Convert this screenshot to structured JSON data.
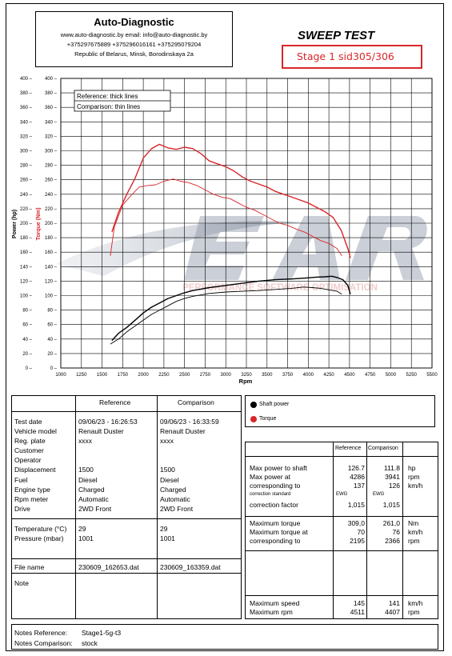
{
  "header": {
    "brand": "Auto-Diagnostic",
    "line1": "www.auto-diagnostic.by    email: info@auto-diagnostic.by",
    "line2": "+375297675889  +375296016161  +375295079204",
    "line3": "Republic of Belarus, Minsk, Borodinskaya 2a"
  },
  "title": "SWEEP TEST",
  "stage_label": "Stage 1 sid305/306",
  "legend_box": {
    "reference": "Reference: thick lines",
    "comparison": "Comparison: thin lines"
  },
  "legend_side": {
    "shaft": "Shaft power",
    "torque": "Torque"
  },
  "watermark": "PERFORMANCE SOFTWARE OPTIMISATION",
  "colors": {
    "torque": "#d9262a",
    "power": "#000000",
    "stage_border": "#d9262a"
  },
  "chart_data": {
    "type": "line",
    "xlabel": "Rpm",
    "ylabel_left": "Power (hp)",
    "ylabel_right": "Torque (Nm)",
    "xlim": [
      1000,
      5500
    ],
    "ylim": [
      0,
      400
    ],
    "x_ticks": [
      1000,
      1250,
      1500,
      1750,
      2000,
      2250,
      2500,
      2750,
      3000,
      3250,
      3500,
      3750,
      4000,
      4250,
      4500,
      4750,
      5000,
      5250,
      5500
    ],
    "y_ticks": [
      0,
      20,
      40,
      60,
      80,
      100,
      120,
      140,
      160,
      180,
      200,
      220,
      240,
      260,
      280,
      300,
      320,
      340,
      360,
      380,
      400
    ],
    "grid": true,
    "series": [
      {
        "name": "Reference torque",
        "kind": "torque",
        "weight": "thick",
        "x": [
          1620,
          1700,
          1800,
          1900,
          2000,
          2100,
          2195,
          2300,
          2400,
          2500,
          2600,
          2700,
          2800,
          2900,
          3000,
          3100,
          3200,
          3300,
          3400,
          3500,
          3600,
          3700,
          3800,
          3900,
          4000,
          4100,
          4200,
          4300,
          4400,
          4480,
          4511
        ],
        "y": [
          188,
          215,
          240,
          262,
          290,
          303,
          309,
          304,
          302,
          305,
          303,
          296,
          286,
          282,
          278,
          272,
          264,
          258,
          254,
          250,
          244,
          240,
          236,
          232,
          228,
          222,
          216,
          208,
          190,
          165,
          152
        ]
      },
      {
        "name": "Comparison torque",
        "kind": "torque",
        "weight": "thin",
        "x": [
          1600,
          1650,
          1750,
          1850,
          1950,
          2050,
          2150,
          2250,
          2366,
          2450,
          2550,
          2650,
          2750,
          2850,
          2950,
          3050,
          3150,
          3250,
          3350,
          3450,
          3550,
          3650,
          3750,
          3850,
          3950,
          4050,
          4150,
          4250,
          4350,
          4407
        ],
        "y": [
          155,
          195,
          225,
          238,
          250,
          252,
          253,
          258,
          261,
          258,
          256,
          252,
          246,
          240,
          236,
          234,
          228,
          222,
          218,
          212,
          206,
          200,
          197,
          192,
          188,
          182,
          176,
          172,
          165,
          155
        ]
      },
      {
        "name": "Reference shaft power",
        "kind": "power",
        "weight": "thick",
        "x": [
          1620,
          1700,
          1800,
          1900,
          2000,
          2100,
          2200,
          2300,
          2400,
          2500,
          2600,
          2800,
          3000,
          3200,
          3400,
          3600,
          3800,
          4000,
          4100,
          4200,
          4286,
          4350,
          4420,
          4480,
          4511
        ],
        "y": [
          38,
          48,
          56,
          66,
          76,
          84,
          90,
          96,
          100,
          104,
          107,
          111,
          114,
          117,
          120,
          122,
          123,
          124.5,
          125.5,
          126,
          126.7,
          125,
          122,
          114,
          102
        ]
      },
      {
        "name": "Comparison shaft power",
        "kind": "power",
        "weight": "thin",
        "x": [
          1600,
          1700,
          1800,
          1900,
          2000,
          2100,
          2200,
          2300,
          2400,
          2500,
          2600,
          2800,
          3000,
          3200,
          3400,
          3600,
          3800,
          3941,
          4050,
          4150,
          4250,
          4350,
          4407
        ],
        "y": [
          33,
          40,
          50,
          58,
          66,
          74,
          80,
          86,
          92,
          96,
          99,
          103,
          105,
          106,
          107,
          108.5,
          110,
          111.8,
          111,
          110,
          108,
          106,
          102
        ]
      }
    ]
  },
  "table": {
    "reference_header": "Reference",
    "comparison_header": "Comparison",
    "labels": {
      "test_date": "Test date",
      "vehicle_model": "Vehicle model",
      "reg_plate": "Reg. plate",
      "customer": "Customer",
      "operator": "Operator",
      "displacement": "Displacement",
      "fuel": "Fuel",
      "engine_type": "Engine type",
      "rpm_meter": "Rpm meter",
      "drive": "Drive",
      "temperature": "Temperature (°C)",
      "pressure": "Pressure (mbar)",
      "file_name": "File name",
      "note": "Note"
    },
    "reference": {
      "test_date": "09/06/23 - 16:26:53",
      "vehicle_model": "Renault Duster",
      "reg_plate": "xxxx",
      "displacement": "1500",
      "fuel": "Diesel",
      "engine_type": "Charged",
      "rpm_meter": "Automatic",
      "drive": "2WD Front",
      "temperature": "29",
      "pressure": "1001",
      "file_name": "230609_162653.dat"
    },
    "comparison": {
      "test_date": "09/06/23 - 16:33:59",
      "vehicle_model": "Renault Duster",
      "reg_plate": "xxxx",
      "displacement": "1500",
      "fuel": "Diesel",
      "engine_type": "Charged",
      "rpm_meter": "Automatic",
      "drive": "2WD Front",
      "temperature": "29",
      "pressure": "1001",
      "file_name": "230609_163359.dat"
    }
  },
  "results": {
    "reference_header": "Reference",
    "comparison_header": "Comparison",
    "rows": {
      "max_power": {
        "label": "Max power to shaft",
        "ref": "126.7",
        "cmp": "111.8",
        "unit": "hp"
      },
      "max_power_rpm": {
        "label": "Max power at",
        "ref": "4286",
        "cmp": "3941",
        "unit": "rpm"
      },
      "max_power_speed": {
        "label": "corresponding to",
        "ref": "137",
        "cmp": "126",
        "unit": "km/h"
      },
      "correction_std": {
        "label": "correction standard",
        "ref": "EWG",
        "cmp": "EWG"
      },
      "correction_factor": {
        "label": "correction factor",
        "ref": "1,015",
        "cmp": "1,015"
      },
      "max_torque": {
        "label": "Maximum torque",
        "ref": "309,0",
        "cmp": "261,0",
        "unit": "Nm"
      },
      "max_torque_at": {
        "label": "Maximum torque at",
        "ref": "70",
        "cmp": "76",
        "unit": "km/h"
      },
      "max_torque_rpm": {
        "label": "corresponding to",
        "ref": "2195",
        "cmp": "2366",
        "unit": "rpm"
      },
      "max_speed": {
        "label": "Maximum speed",
        "ref": "145",
        "cmp": "141",
        "unit": "km/h"
      },
      "max_rpm": {
        "label": "Maximum rpm",
        "ref": "4511",
        "cmp": "4407",
        "unit": "rpm"
      }
    }
  },
  "notes": {
    "reference_label": "Notes Reference:",
    "reference_value": "Stage1-5g-t3",
    "comparison_label": "Notes Comparison:",
    "comparison_value": "stock"
  }
}
